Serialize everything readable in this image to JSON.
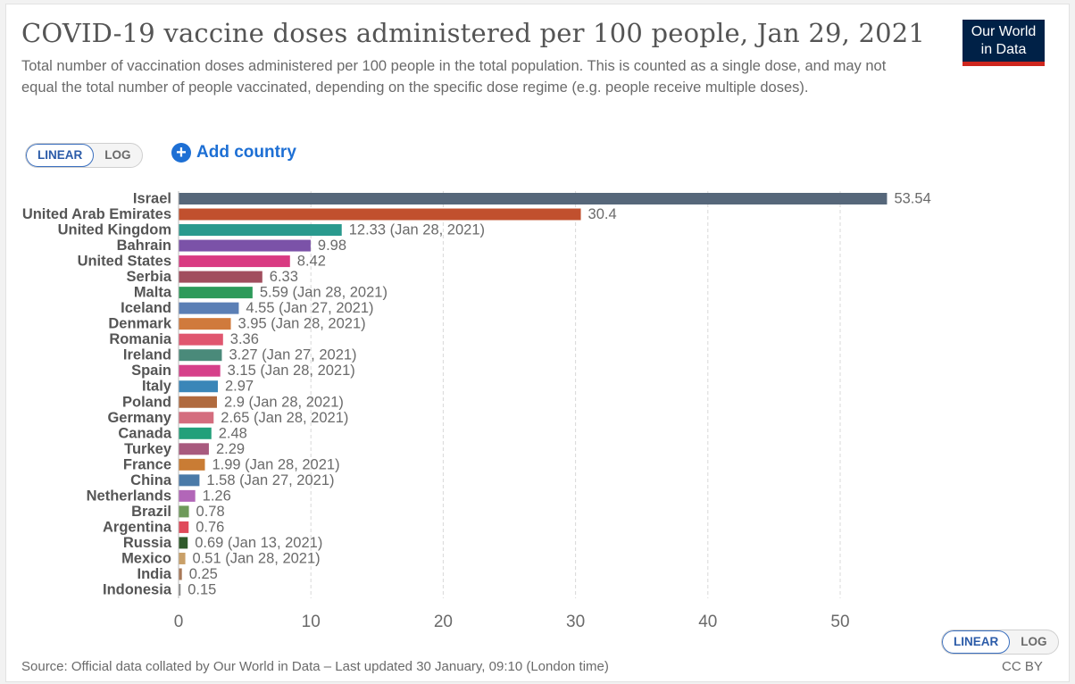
{
  "header": {
    "title": "COVID-19 vaccine doses administered per 100 people, Jan 29, 2021",
    "subtitle": "Total number of vaccination doses administered per 100 people in the total population. This is counted as a single dose, and may not equal the total number of people vaccinated, depending on the specific dose regime (e.g. people receive multiple doses).",
    "logo_line1": "Our World",
    "logo_line2": "in Data"
  },
  "controls": {
    "scale_linear": "LINEAR",
    "scale_log": "LOG",
    "add_country": "Add country"
  },
  "footer": {
    "source": "Source: Official data collated by Our World in Data – Last updated 30 January, 09:10 (London time)",
    "license": "CC BY"
  },
  "colors": {
    "accent": "#1d6fd4",
    "logo_bg": "#002147",
    "logo_stripe": "#ce261e"
  },
  "chart_data": {
    "type": "bar",
    "orientation": "horizontal",
    "xlim": [
      0,
      58
    ],
    "xticks": [
      0,
      10,
      20,
      30,
      40,
      50
    ],
    "grid": true,
    "bars": [
      {
        "label": "Israel",
        "value": 53.54,
        "value_label": "53.54",
        "color": "#56677a"
      },
      {
        "label": "United Arab Emirates",
        "value": 30.4,
        "value_label": "30.4",
        "color": "#c1502e"
      },
      {
        "label": "United Kingdom",
        "value": 12.33,
        "value_label": "12.33 (Jan 28, 2021)",
        "color": "#2a9a8e"
      },
      {
        "label": "Bahrain",
        "value": 9.98,
        "value_label": "9.98",
        "color": "#7b52a8"
      },
      {
        "label": "United States",
        "value": 8.42,
        "value_label": "8.42",
        "color": "#d93a82"
      },
      {
        "label": "Serbia",
        "value": 6.33,
        "value_label": "6.33",
        "color": "#a14e5e"
      },
      {
        "label": "Malta",
        "value": 5.59,
        "value_label": "5.59 (Jan 28, 2021)",
        "color": "#2d9a5a"
      },
      {
        "label": "Iceland",
        "value": 4.55,
        "value_label": "4.55 (Jan 27, 2021)",
        "color": "#5b7fb5"
      },
      {
        "label": "Denmark",
        "value": 3.95,
        "value_label": "3.95 (Jan 28, 2021)",
        "color": "#d07a3c"
      },
      {
        "label": "Romania",
        "value": 3.36,
        "value_label": "3.36",
        "color": "#e0566f"
      },
      {
        "label": "Ireland",
        "value": 3.27,
        "value_label": "3.27 (Jan 27, 2021)",
        "color": "#4a8a7a"
      },
      {
        "label": "Spain",
        "value": 3.15,
        "value_label": "3.15 (Jan 28, 2021)",
        "color": "#d6408a"
      },
      {
        "label": "Italy",
        "value": 2.97,
        "value_label": "2.97",
        "color": "#3a86b8"
      },
      {
        "label": "Poland",
        "value": 2.9,
        "value_label": "2.9 (Jan 28, 2021)",
        "color": "#b06a3e"
      },
      {
        "label": "Germany",
        "value": 2.65,
        "value_label": "2.65 (Jan 28, 2021)",
        "color": "#d46d7e"
      },
      {
        "label": "Canada",
        "value": 2.48,
        "value_label": "2.48",
        "color": "#22a07a"
      },
      {
        "label": "Turkey",
        "value": 2.29,
        "value_label": "2.29",
        "color": "#a85a7e"
      },
      {
        "label": "France",
        "value": 1.99,
        "value_label": "1.99 (Jan 28, 2021)",
        "color": "#c97c34"
      },
      {
        "label": "China",
        "value": 1.58,
        "value_label": "1.58 (Jan 27, 2021)",
        "color": "#4a7aa8"
      },
      {
        "label": "Netherlands",
        "value": 1.26,
        "value_label": "1.26",
        "color": "#b266b8"
      },
      {
        "label": "Brazil",
        "value": 0.78,
        "value_label": "0.78",
        "color": "#6e9a5a"
      },
      {
        "label": "Argentina",
        "value": 0.76,
        "value_label": "0.76",
        "color": "#e04a5a"
      },
      {
        "label": "Russia",
        "value": 0.69,
        "value_label": "0.69 (Jan 13, 2021)",
        "color": "#2f5a2a"
      },
      {
        "label": "Mexico",
        "value": 0.51,
        "value_label": "0.51 (Jan 28, 2021)",
        "color": "#c9a068"
      },
      {
        "label": "India",
        "value": 0.25,
        "value_label": "0.25",
        "color": "#a87858"
      },
      {
        "label": "Indonesia",
        "value": 0.15,
        "value_label": "0.15",
        "color": "#8a8a8a"
      }
    ]
  }
}
